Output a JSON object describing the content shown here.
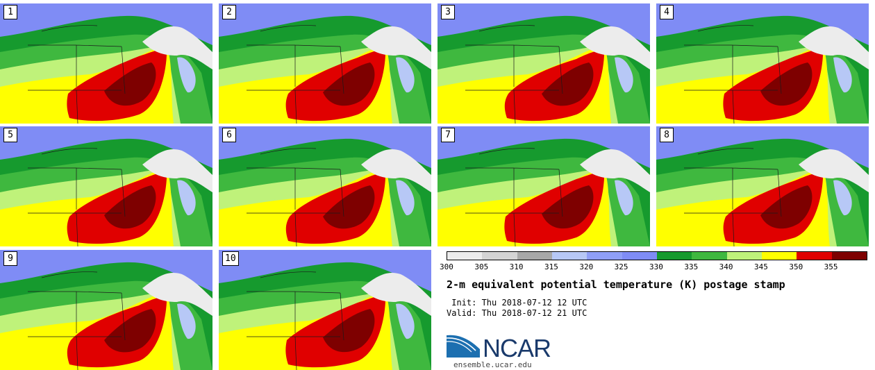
{
  "panels": [
    {
      "label": "1"
    },
    {
      "label": "2"
    },
    {
      "label": "3"
    },
    {
      "label": "4"
    },
    {
      "label": "5"
    },
    {
      "label": "6"
    },
    {
      "label": "7"
    },
    {
      "label": "8"
    },
    {
      "label": "9"
    },
    {
      "label": "10"
    }
  ],
  "colorbar": {
    "colors": [
      "#ececec",
      "#d4d4d4",
      "#a8a8a8",
      "#b7c8f6",
      "#8f9ff7",
      "#7f8cf5",
      "#169a2e",
      "#3fb83f",
      "#bff27a",
      "#ffff00",
      "#e00000",
      "#7e0000"
    ],
    "ticks": [
      "300",
      "305",
      "310",
      "315",
      "320",
      "325",
      "330",
      "335",
      "340",
      "345",
      "350",
      "355"
    ]
  },
  "title": "2-m equivalent potential temperature (K) postage stamp",
  "init_text": " Init: Thu 2018-07-12 12 UTC",
  "valid_text": "Valid: Thu 2018-07-12 21 UTC",
  "logo": {
    "name": "NCAR",
    "url": "ensemble.ucar.edu"
  }
}
